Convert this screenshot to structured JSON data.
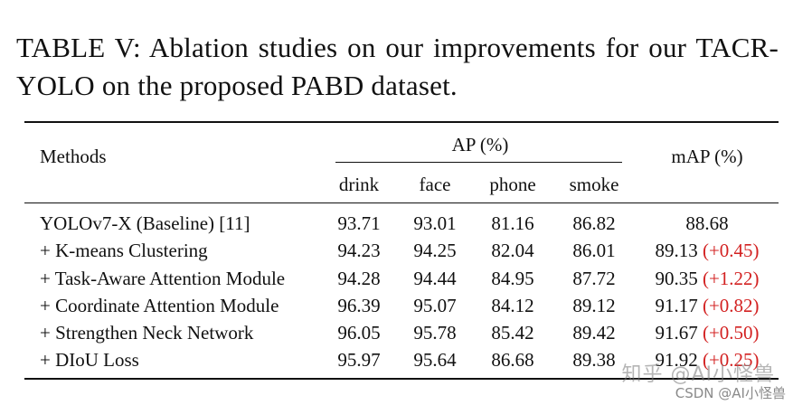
{
  "caption": "TABLE V: Ablation studies on our improvements for our TACR-YOLO on the proposed PABD dataset.",
  "headers": {
    "methods": "Methods",
    "ap_group": "AP (%)",
    "map": "mAP (%)",
    "ap_columns": [
      "drink",
      "face",
      "phone",
      "smoke"
    ]
  },
  "rows": [
    {
      "method": "YOLOv7-X (Baseline) [11]",
      "drink": "93.71",
      "face": "93.01",
      "phone": "81.16",
      "smoke": "86.82",
      "map": "88.68",
      "delta": ""
    },
    {
      "method": "+ K-means Clustering",
      "drink": "94.23",
      "face": "94.25",
      "phone": "82.04",
      "smoke": "86.01",
      "map": "89.13",
      "delta": "(+0.45)"
    },
    {
      "method": "+ Task-Aware Attention Module",
      "drink": "94.28",
      "face": "94.44",
      "phone": "84.95",
      "smoke": "87.72",
      "map": "90.35",
      "delta": "(+1.22)"
    },
    {
      "method": "+ Coordinate Attention Module",
      "drink": "96.39",
      "face": "95.07",
      "phone": "84.12",
      "smoke": "89.12",
      "map": "91.17",
      "delta": "(+0.82)"
    },
    {
      "method": "+ Strengthen Neck Network",
      "drink": "96.05",
      "face": "95.78",
      "phone": "85.42",
      "smoke": "89.42",
      "map": "91.67",
      "delta": "(+0.50)"
    },
    {
      "method": "+ DIoU Loss",
      "drink": "95.97",
      "face": "95.64",
      "phone": "86.68",
      "smoke": "89.38",
      "map": "91.92",
      "delta": "(+0.25)"
    }
  ],
  "watermark": {
    "main": "知乎 @AI小怪兽",
    "sub": "CSDN @AI小怪兽"
  },
  "colors": {
    "text": "#111111",
    "delta": "#d32222",
    "watermark": "#9a9a9a"
  }
}
